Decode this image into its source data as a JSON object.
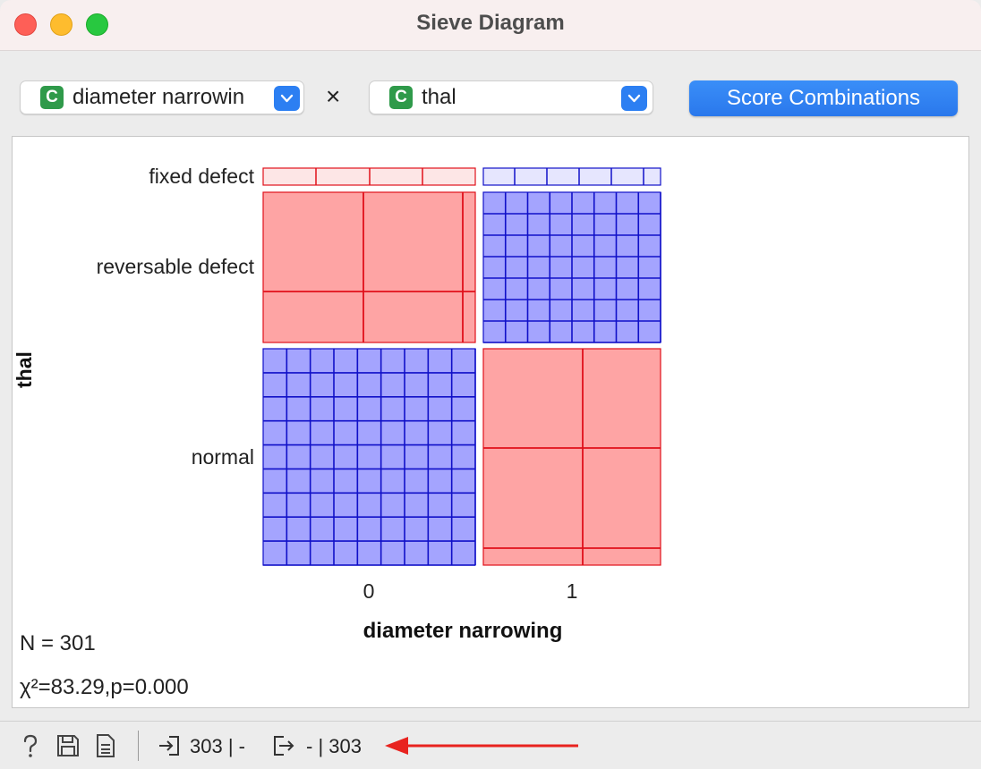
{
  "window": {
    "title": "Sieve Diagram"
  },
  "controls": {
    "x_attr": {
      "type_badge": "C",
      "value": "diameter narrowin",
      "icon": "chevron-down-icon"
    },
    "separator": "×",
    "y_attr": {
      "type_badge": "C",
      "value": "thal",
      "icon": "chevron-down-icon"
    },
    "score_button": "Score Combinations"
  },
  "plot": {
    "y_axis_title": "thal",
    "x_axis_title": "diameter narrowing",
    "y_categories": [
      "fixed defect",
      "reversable defect",
      "normal"
    ],
    "x_categories": [
      "0",
      "1"
    ],
    "n_text": "N = 301",
    "chi_text": "χ²=83.29,p=0.000"
  },
  "chart_data": {
    "type": "heatmap",
    "xlabel": "diameter narrowing",
    "ylabel": "thal",
    "x_categories": [
      "0",
      "1"
    ],
    "y_categories": [
      "fixed defect",
      "reversable defect",
      "normal"
    ],
    "cell_colors": {
      "positive_residual": "#a4a4fe",
      "negative_residual": "#fea4a4"
    },
    "cells": [
      {
        "x": "0",
        "y": "fixed defect",
        "deviation": "fewer than expected"
      },
      {
        "x": "1",
        "y": "fixed defect",
        "deviation": "more than expected"
      },
      {
        "x": "0",
        "y": "reversable defect",
        "deviation": "fewer than expected"
      },
      {
        "x": "1",
        "y": "reversable defect",
        "deviation": "more than expected"
      },
      {
        "x": "0",
        "y": "normal",
        "deviation": "more than expected"
      },
      {
        "x": "1",
        "y": "normal",
        "deviation": "fewer than expected"
      }
    ]
  },
  "statusbar": {
    "icons": [
      "help-icon",
      "save-icon",
      "report-icon"
    ],
    "input_summary": "303 | -",
    "output_summary": "- | 303",
    "annotation_arrow_color": "#e8231f"
  },
  "colors": {
    "accent": "#2c7ff2",
    "badge_green": "#2f9a4a",
    "blue_fill": "#a4a4fe",
    "blue_line": "#1010c8",
    "red_fill": "#fea4a4",
    "red_line": "#e0101a"
  }
}
